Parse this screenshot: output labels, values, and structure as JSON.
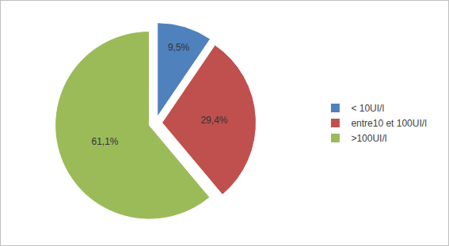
{
  "chart_data": {
    "type": "pie",
    "categories": [
      "< 10UI/l",
      "entre10 et 100UI/l",
      ">100UI/l"
    ],
    "values": [
      9.5,
      29.4,
      61.1
    ],
    "value_labels": [
      "9,5%",
      "29,4%",
      "61,1%"
    ],
    "colors": [
      "#4f81bd",
      "#c0504d",
      "#9bbb59"
    ],
    "data_labels": true,
    "legend": "right"
  }
}
